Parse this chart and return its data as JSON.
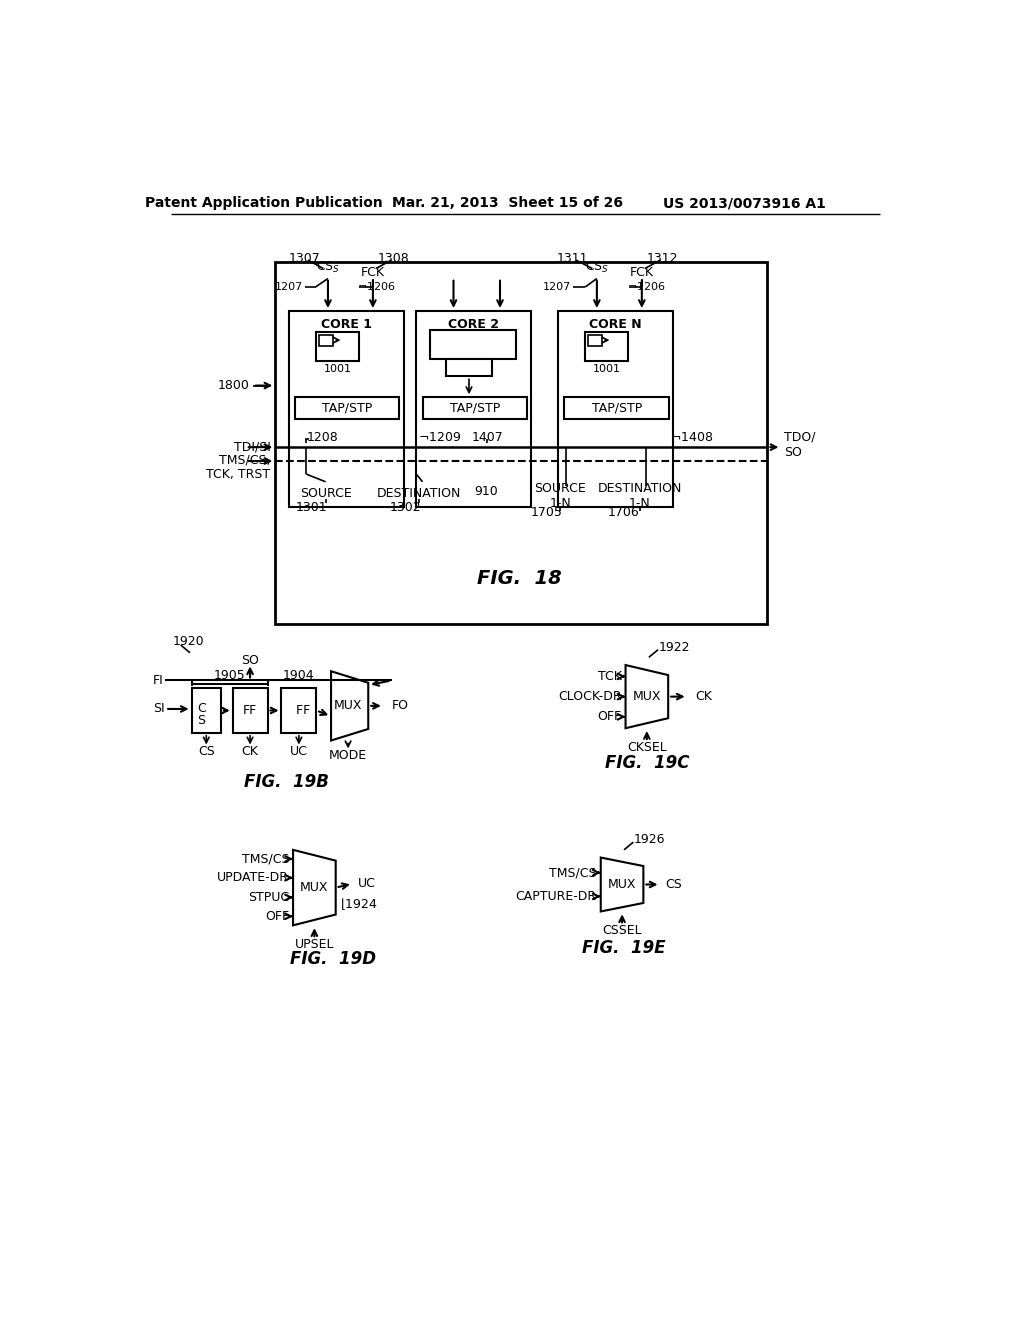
{
  "bg_color": "#ffffff",
  "header_left": "Patent Application Publication",
  "header_center": "Mar. 21, 2013  Sheet 15 of 26",
  "header_right": "US 2013/0073916 A1",
  "fig18_caption": "FIG.  18",
  "fig19b_caption": "FIG.  19B",
  "fig19c_caption": "FIG.  19C",
  "fig19d_caption": "FIG.  19D",
  "fig19e_caption": "FIG.  19E"
}
